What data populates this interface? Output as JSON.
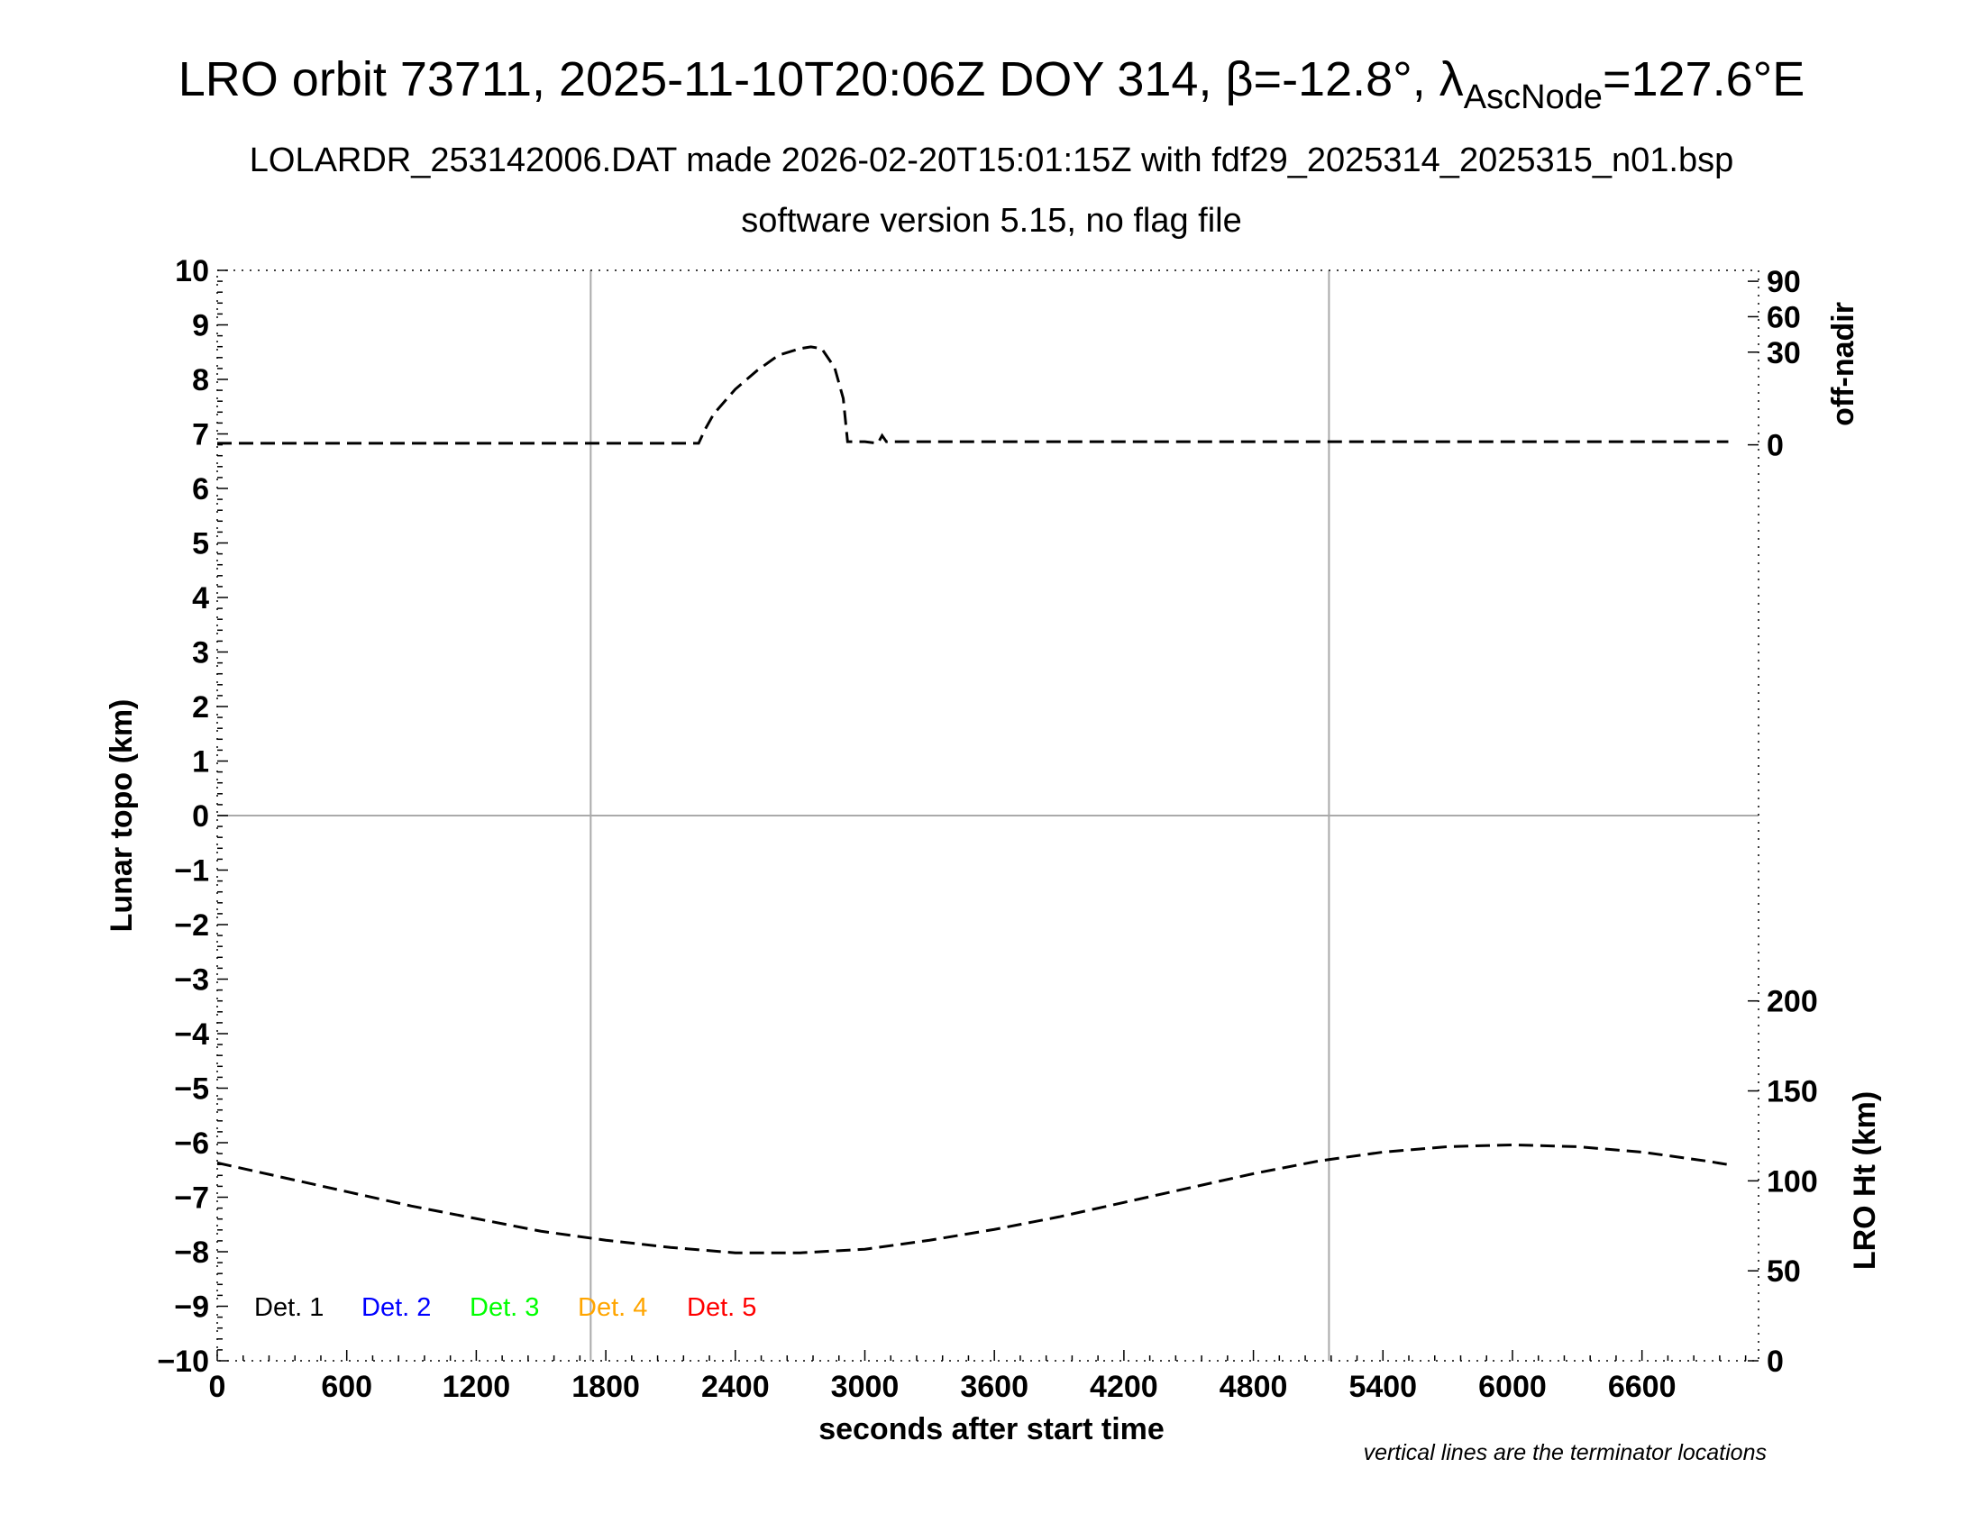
{
  "chart_data": {
    "type": "line",
    "title": {
      "pre": "LRO orbit 73711, 2025-11-10T20:06Z DOY 314, ",
      "beta_symbol": "β",
      "beta": "=-12.8°, ",
      "lambda_symbol": "λ",
      "lambda_sub": "AscNode",
      "lambda_value": "=127.6°E"
    },
    "subtitle1": "LOLARDR_253142006.DAT made 2026-02-20T15:01:15Z with fdf29_2025314_2025315_n01.bsp",
    "subtitle2": "software version 5.15, no flag file",
    "xlabel": "seconds after start time",
    "ylabel_left": "Lunar topo (km)",
    "ylabel_right_top": "off-nadir",
    "ylabel_right_bottom": "LRO Ht (km)",
    "note": "vertical lines are the terminator locations",
    "xlim": [
      0,
      7140
    ],
    "ylim_left": [
      -10,
      10
    ],
    "x_ticks": [
      "0",
      "600",
      "1200",
      "1800",
      "2400",
      "3000",
      "3600",
      "4200",
      "4800",
      "5400",
      "6000",
      "6600"
    ],
    "y_ticks_left": [
      "10",
      "9",
      "8",
      "7",
      "6",
      "5",
      "4",
      "3",
      "2",
      "1",
      "0",
      "−1",
      "−2",
      "−3",
      "−4",
      "−5",
      "−6",
      "−7",
      "−8",
      "−9",
      "−10"
    ],
    "off_nadir_ticks": [
      "90",
      "60",
      "30",
      "0"
    ],
    "lro_ht_ticks": [
      "200",
      "150",
      "100",
      "50",
      "0"
    ],
    "terminator_lines_x": [
      1730,
      5150
    ],
    "legend": [
      {
        "label": "Det. 1",
        "color": "#000000"
      },
      {
        "label": "Det. 2",
        "color": "#0000ff"
      },
      {
        "label": "Det. 3",
        "color": "#00ff00"
      },
      {
        "label": "Det. 4",
        "color": "#ffa500"
      },
      {
        "label": "Det. 5",
        "color": "#ff0000"
      }
    ],
    "series": [
      {
        "axis": "off-nadir (deg)",
        "style": "dashed",
        "x": [
          0,
          2230,
          2260,
          2300,
          2400,
          2500,
          2600,
          2700,
          2750,
          2800,
          2860,
          2900,
          2920,
          3000,
          3060,
          3080,
          3100,
          7000
        ],
        "values": [
          0.5,
          0.5,
          5,
          10,
          18,
          24,
          29,
          33,
          34.5,
          33,
          25,
          15,
          1,
          1,
          0.5,
          3,
          1,
          1
        ]
      },
      {
        "axis": "LRO Ht (km)",
        "style": "dashed",
        "x": [
          0,
          300,
          600,
          900,
          1200,
          1500,
          1800,
          2100,
          2400,
          2700,
          3000,
          3300,
          3600,
          3900,
          4200,
          4500,
          4800,
          5100,
          5400,
          5700,
          6000,
          6300,
          6600,
          6900,
          7000
        ],
        "values": [
          110,
          102,
          94,
          86,
          79,
          72,
          67,
          63,
          60,
          60,
          62,
          67,
          73,
          80,
          88,
          96,
          104,
          111,
          116,
          119,
          120,
          119,
          116,
          111,
          109
        ]
      }
    ]
  }
}
